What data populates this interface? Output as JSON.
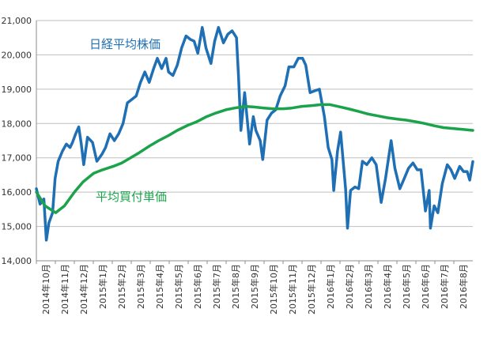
{
  "chart_data": {
    "type": "line",
    "title": "",
    "xlabel": "",
    "ylabel": "",
    "ylim": [
      14000,
      21000
    ],
    "grid": true,
    "legend": "inline",
    "y_ticks": [
      14000,
      15000,
      16000,
      17000,
      18000,
      19000,
      20000,
      21000
    ],
    "y_tick_labels": [
      "14,000",
      "15,000",
      "16,000",
      "17,000",
      "18,000",
      "19,000",
      "20,000",
      "21,000"
    ],
    "x_start": "2014-10-01",
    "x_end": "2016-08-31",
    "x_tick_labels": [
      "2014年10月",
      "2014年11月",
      "2014年12月",
      "2015年1月",
      "2015年2月",
      "2015年3月",
      "2015年4月",
      "2015年5月",
      "2015年6月",
      "2015年7月",
      "2015年8月",
      "2015年9月",
      "2015年10月",
      "2015年11月",
      "2015年12月",
      "2016年1月",
      "2016年2月",
      "2016年3月",
      "2016年4月",
      "2016年5月",
      "2016年6月",
      "2016年7月",
      "2016年8月"
    ],
    "series": [
      {
        "name": "日経平均株価",
        "color": "#1f6fb5",
        "points": [
          [
            "2014-10-01",
            16100
          ],
          [
            "2014-10-07",
            15650
          ],
          [
            "2014-10-13",
            15800
          ],
          [
            "2014-10-17",
            14600
          ],
          [
            "2014-10-21",
            15100
          ],
          [
            "2014-10-27",
            15400
          ],
          [
            "2014-10-31",
            16400
          ],
          [
            "2014-11-05",
            16900
          ],
          [
            "2014-11-12",
            17200
          ],
          [
            "2014-11-18",
            17400
          ],
          [
            "2014-11-24",
            17300
          ],
          [
            "2014-11-28",
            17450
          ],
          [
            "2014-12-03",
            17700
          ],
          [
            "2014-12-08",
            17900
          ],
          [
            "2014-12-12",
            17400
          ],
          [
            "2014-12-16",
            16800
          ],
          [
            "2014-12-22",
            17600
          ],
          [
            "2014-12-30",
            17450
          ],
          [
            "2015-01-06",
            16900
          ],
          [
            "2015-01-14",
            17100
          ],
          [
            "2015-01-20",
            17300
          ],
          [
            "2015-01-27",
            17700
          ],
          [
            "2015-02-03",
            17500
          ],
          [
            "2015-02-10",
            17700
          ],
          [
            "2015-02-17",
            18000
          ],
          [
            "2015-02-24",
            18600
          ],
          [
            "2015-03-03",
            18700
          ],
          [
            "2015-03-10",
            18800
          ],
          [
            "2015-03-17",
            19200
          ],
          [
            "2015-03-24",
            19500
          ],
          [
            "2015-03-31",
            19200
          ],
          [
            "2015-04-07",
            19600
          ],
          [
            "2015-04-13",
            19900
          ],
          [
            "2015-04-20",
            19600
          ],
          [
            "2015-04-27",
            19900
          ],
          [
            "2015-05-01",
            19500
          ],
          [
            "2015-05-08",
            19400
          ],
          [
            "2015-05-15",
            19700
          ],
          [
            "2015-05-22",
            20200
          ],
          [
            "2015-05-29",
            20550
          ],
          [
            "2015-06-05",
            20450
          ],
          [
            "2015-06-11",
            20400
          ],
          [
            "2015-06-17",
            20050
          ],
          [
            "2015-06-24",
            20800
          ],
          [
            "2015-06-30",
            20200
          ],
          [
            "2015-07-08",
            19750
          ],
          [
            "2015-07-14",
            20400
          ],
          [
            "2015-07-20",
            20800
          ],
          [
            "2015-07-28",
            20350
          ],
          [
            "2015-08-04",
            20600
          ],
          [
            "2015-08-11",
            20700
          ],
          [
            "2015-08-18",
            20500
          ],
          [
            "2015-08-21",
            19450
          ],
          [
            "2015-08-25",
            17800
          ],
          [
            "2015-08-31",
            18900
          ],
          [
            "2015-09-08",
            17400
          ],
          [
            "2015-09-14",
            18200
          ],
          [
            "2015-09-18",
            17800
          ],
          [
            "2015-09-25",
            17500
          ],
          [
            "2015-09-29",
            16950
          ],
          [
            "2015-10-06",
            18100
          ],
          [
            "2015-10-13",
            18300
          ],
          [
            "2015-10-20",
            18400
          ],
          [
            "2015-10-27",
            18800
          ],
          [
            "2015-11-04",
            19100
          ],
          [
            "2015-11-10",
            19650
          ],
          [
            "2015-11-18",
            19650
          ],
          [
            "2015-11-25",
            19900
          ],
          [
            "2015-12-02",
            19900
          ],
          [
            "2015-12-07",
            19700
          ],
          [
            "2015-12-14",
            18900
          ],
          [
            "2015-12-21",
            18950
          ],
          [
            "2015-12-29",
            19000
          ],
          [
            "2016-01-06",
            18200
          ],
          [
            "2016-01-12",
            17300
          ],
          [
            "2016-01-18",
            16950
          ],
          [
            "2016-01-21",
            16050
          ],
          [
            "2016-01-27",
            17200
          ],
          [
            "2016-02-01",
            17750
          ],
          [
            "2016-02-09",
            16100
          ],
          [
            "2016-02-12",
            14950
          ],
          [
            "2016-02-17",
            16050
          ],
          [
            "2016-02-24",
            16150
          ],
          [
            "2016-03-01",
            16100
          ],
          [
            "2016-03-07",
            16900
          ],
          [
            "2016-03-14",
            16800
          ],
          [
            "2016-03-22",
            17000
          ],
          [
            "2016-03-29",
            16800
          ],
          [
            "2016-04-06",
            15700
          ],
          [
            "2016-04-13",
            16400
          ],
          [
            "2016-04-22",
            17500
          ],
          [
            "2016-04-28",
            16700
          ],
          [
            "2016-05-06",
            16100
          ],
          [
            "2016-05-13",
            16400
          ],
          [
            "2016-05-20",
            16700
          ],
          [
            "2016-05-27",
            16850
          ],
          [
            "2016-06-03",
            16650
          ],
          [
            "2016-06-09",
            16650
          ],
          [
            "2016-06-16",
            15450
          ],
          [
            "2016-06-22",
            16050
          ],
          [
            "2016-06-24",
            14950
          ],
          [
            "2016-06-30",
            15600
          ],
          [
            "2016-07-06",
            15400
          ],
          [
            "2016-07-13",
            16250
          ],
          [
            "2016-07-21",
            16800
          ],
          [
            "2016-07-27",
            16650
          ],
          [
            "2016-08-02",
            16400
          ],
          [
            "2016-08-10",
            16750
          ],
          [
            "2016-08-16",
            16600
          ],
          [
            "2016-08-22",
            16600
          ],
          [
            "2016-08-26",
            16350
          ],
          [
            "2016-08-31",
            16890
          ]
        ]
      },
      {
        "name": "平均買付単価",
        "color": "#1aa34a",
        "points": [
          [
            "2014-10-01",
            16000
          ],
          [
            "2014-10-15",
            15600
          ],
          [
            "2014-11-01",
            15400
          ],
          [
            "2014-11-15",
            15600
          ],
          [
            "2014-12-01",
            16000
          ],
          [
            "2014-12-15",
            16300
          ],
          [
            "2015-01-01",
            16550
          ],
          [
            "2015-01-15",
            16650
          ],
          [
            "2015-02-01",
            16750
          ],
          [
            "2015-02-15",
            16850
          ],
          [
            "2015-03-01",
            17000
          ],
          [
            "2015-03-15",
            17150
          ],
          [
            "2015-04-01",
            17350
          ],
          [
            "2015-04-15",
            17500
          ],
          [
            "2015-05-01",
            17650
          ],
          [
            "2015-05-15",
            17800
          ],
          [
            "2015-06-01",
            17950
          ],
          [
            "2015-06-15",
            18050
          ],
          [
            "2015-07-01",
            18200
          ],
          [
            "2015-07-15",
            18300
          ],
          [
            "2015-08-01",
            18400
          ],
          [
            "2015-08-15",
            18450
          ],
          [
            "2015-09-01",
            18500
          ],
          [
            "2015-09-15",
            18480
          ],
          [
            "2015-10-01",
            18450
          ],
          [
            "2015-10-15",
            18430
          ],
          [
            "2015-11-01",
            18430
          ],
          [
            "2015-11-15",
            18450
          ],
          [
            "2015-12-01",
            18500
          ],
          [
            "2015-12-15",
            18520
          ],
          [
            "2016-01-01",
            18550
          ],
          [
            "2016-01-15",
            18550
          ],
          [
            "2016-02-01",
            18480
          ],
          [
            "2016-02-15",
            18420
          ],
          [
            "2016-03-01",
            18350
          ],
          [
            "2016-03-15",
            18280
          ],
          [
            "2016-04-01",
            18220
          ],
          [
            "2016-04-15",
            18170
          ],
          [
            "2016-05-01",
            18130
          ],
          [
            "2016-05-15",
            18100
          ],
          [
            "2016-06-01",
            18050
          ],
          [
            "2016-06-15",
            18000
          ],
          [
            "2016-07-01",
            17930
          ],
          [
            "2016-07-15",
            17880
          ],
          [
            "2016-08-01",
            17850
          ],
          [
            "2016-08-15",
            17830
          ],
          [
            "2016-08-31",
            17800
          ]
        ]
      }
    ]
  }
}
